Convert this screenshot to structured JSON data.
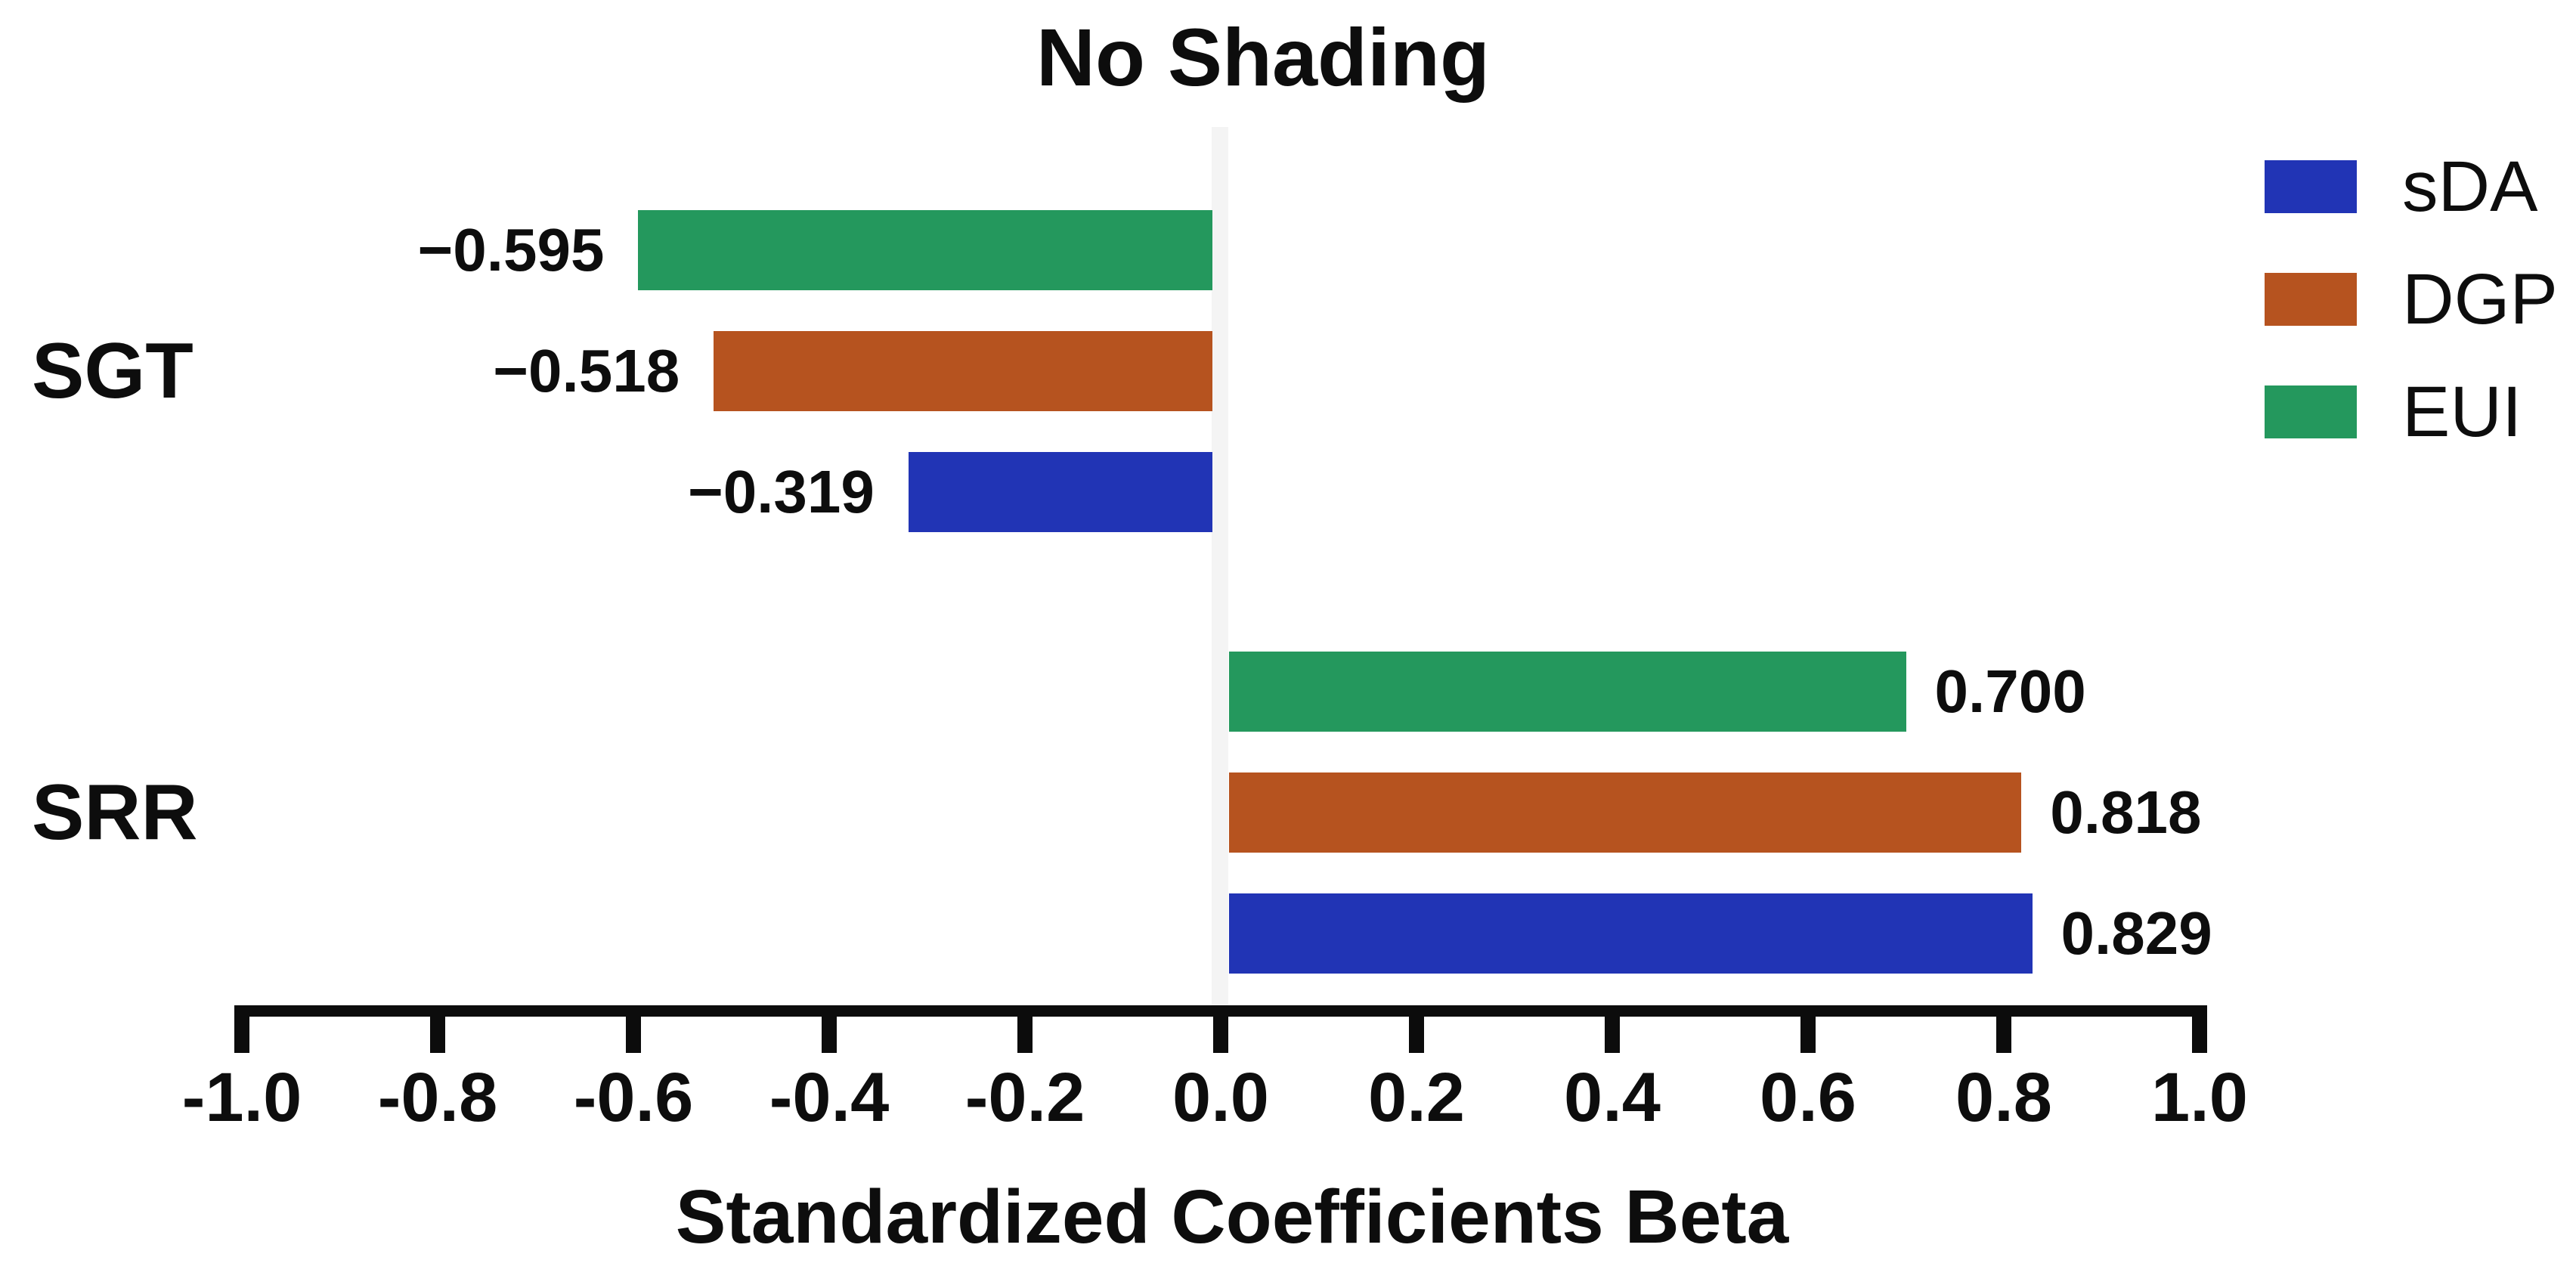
{
  "chart_data": {
    "type": "bar",
    "orientation": "horizontal",
    "title": "No Shading",
    "xlabel": "Standardized Coefficients Beta",
    "xlim": [
      -1.0,
      1.0
    ],
    "grid": false,
    "legend_position": "top-right",
    "categories": [
      "SGT",
      "SRR"
    ],
    "row_order_top_to_bottom": [
      "EUI",
      "DGP",
      "sDA"
    ],
    "series": [
      {
        "name": "sDA",
        "color": "#2134b5",
        "values": [
          -0.319,
          0.829
        ],
        "labels": [
          "−0.319",
          "0.829"
        ]
      },
      {
        "name": "DGP",
        "color": "#b6531f",
        "values": [
          -0.518,
          0.818
        ],
        "labels": [
          "−0.518",
          "0.818"
        ]
      },
      {
        "name": "EUI",
        "color": "#24985d",
        "values": [
          -0.595,
          0.7
        ],
        "labels": [
          "−0.595",
          "0.700"
        ]
      }
    ],
    "xticks": [
      {
        "v": -1.0,
        "label": "-1.0"
      },
      {
        "v": -0.8,
        "label": "-0.8"
      },
      {
        "v": -0.6,
        "label": "-0.6"
      },
      {
        "v": -0.4,
        "label": "-0.4"
      },
      {
        "v": -0.2,
        "label": "-0.2"
      },
      {
        "v": 0.0,
        "label": "0.0"
      },
      {
        "v": 0.2,
        "label": "0.2"
      },
      {
        "v": 0.4,
        "label": "0.4"
      },
      {
        "v": 0.6,
        "label": "0.6"
      },
      {
        "v": 0.8,
        "label": "0.8"
      },
      {
        "v": 1.0,
        "label": "1.0"
      }
    ]
  }
}
